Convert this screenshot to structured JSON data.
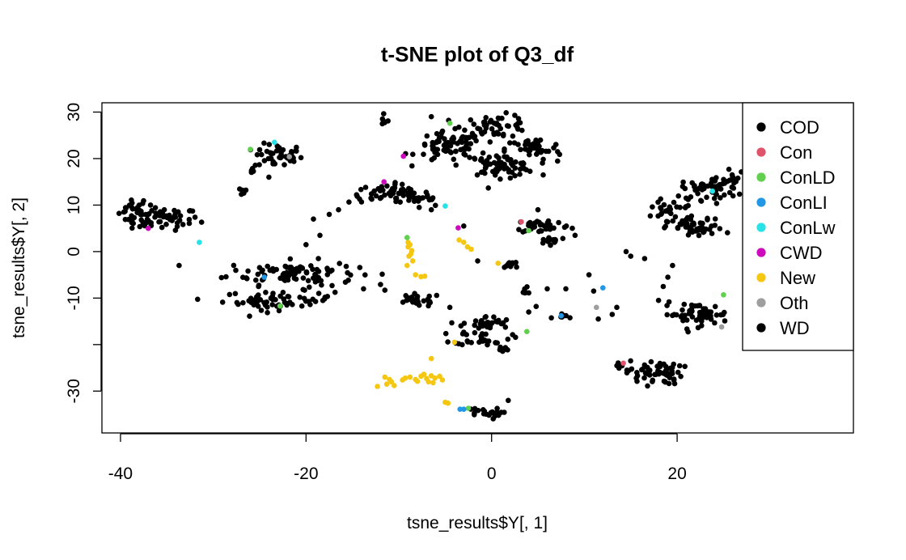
{
  "chart_data": {
    "type": "scatter",
    "title": "t-SNE plot of Q3_df",
    "xlabel": "tsne_results$Y[, 1]",
    "ylabel": "tsne_results$Y[, 2]",
    "xlim": [
      -42,
      39
    ],
    "ylim": [
      -39,
      32
    ],
    "x_ticks": [
      -40,
      -20,
      0,
      20
    ],
    "y_ticks": [
      30,
      20,
      10,
      0,
      -10,
      -30
    ],
    "y_tick_labels": [
      "30",
      "20",
      "10",
      "0",
      "-10",
      "-30"
    ],
    "legend_position": "top-right",
    "legend": [
      {
        "name": "COD",
        "color": "#000000"
      },
      {
        "name": "Con",
        "color": "#DF536B"
      },
      {
        "name": "ConLD",
        "color": "#61D04F"
      },
      {
        "name": "ConLI",
        "color": "#2297E6"
      },
      {
        "name": "ConLw",
        "color": "#28E2E5"
      },
      {
        "name": "CWD",
        "color": "#CD0BBC"
      },
      {
        "name": "New",
        "color": "#F5C710"
      },
      {
        "name": "Oth",
        "color": "#9E9E9E"
      },
      {
        "name": "WD",
        "color": "#000000"
      }
    ],
    "series": [
      {
        "name": "New",
        "color": "#F5C710",
        "points": [
          [
            -9.0,
            1.0
          ],
          [
            -8.6,
            0.2
          ],
          [
            -8.9,
            -1.0
          ],
          [
            -8.5,
            -2.0
          ],
          [
            -9.1,
            -3.0
          ],
          [
            -9.0,
            2.0
          ],
          [
            -8.8,
            1.5
          ],
          [
            -8.7,
            -0.5
          ],
          [
            -8.2,
            -5.0
          ],
          [
            -7.6,
            -5.4
          ],
          [
            -7.2,
            -5.3
          ],
          [
            -3.5,
            2.5
          ],
          [
            -3.0,
            2.0
          ],
          [
            -2.6,
            1.0
          ],
          [
            -2.2,
            0.5
          ],
          [
            0.7,
            -2.5
          ],
          [
            -4.0,
            -19.5
          ],
          [
            -6.5,
            -23.0
          ],
          [
            -11.5,
            -27.0
          ],
          [
            -11.0,
            -27.5
          ],
          [
            -10.8,
            -28.0
          ],
          [
            -11.3,
            -28.5
          ],
          [
            -12.3,
            -29.0
          ],
          [
            -10.5,
            -28.8
          ],
          [
            -8.8,
            -27.0
          ],
          [
            -8.2,
            -27.5
          ],
          [
            -7.6,
            -26.8
          ],
          [
            -7.0,
            -27.3
          ],
          [
            -6.5,
            -26.7
          ],
          [
            -6.1,
            -27.2
          ],
          [
            -5.6,
            -26.8
          ],
          [
            -6.8,
            -28.0
          ],
          [
            -8.0,
            -27.9
          ],
          [
            -9.3,
            -27.2
          ],
          [
            -5.0,
            -32.4
          ],
          [
            -4.7,
            -32.6
          ],
          [
            -7.3,
            -26.4
          ],
          [
            -6.3,
            -28.2
          ],
          [
            -5.3,
            -27.6
          ],
          [
            -9.6,
            -27.6
          ]
        ]
      },
      {
        "name": "ConLD",
        "color": "#61D04F",
        "points": [
          [
            -26.0,
            22.0
          ],
          [
            -22.8,
            -11.7
          ],
          [
            -9.1,
            3.0
          ],
          [
            -4.5,
            27.6
          ],
          [
            4.0,
            4.5
          ],
          [
            3.8,
            -17.2
          ],
          [
            -2.5,
            -33.7
          ],
          [
            25.0,
            -9.3
          ]
        ]
      },
      {
        "name": "ConLI",
        "color": "#2297E6",
        "points": [
          [
            -24.5,
            -5.5
          ],
          [
            -3.4,
            -33.9
          ],
          [
            -3.0,
            -33.9
          ],
          [
            7.5,
            -13.8
          ],
          [
            12.0,
            -7.8
          ]
        ]
      },
      {
        "name": "ConLw",
        "color": "#28E2E5",
        "points": [
          [
            -23.4,
            23.5
          ],
          [
            -31.5,
            2.0
          ],
          [
            -5.0,
            9.8
          ],
          [
            23.8,
            13.0
          ]
        ]
      },
      {
        "name": "CWD",
        "color": "#CD0BBC",
        "points": [
          [
            -37.0,
            5.0
          ],
          [
            -11.6,
            15.0
          ],
          [
            -9.5,
            20.5
          ],
          [
            -3.6,
            5.1
          ]
        ]
      },
      {
        "name": "Con",
        "color": "#DF536B",
        "points": [
          [
            3.2,
            6.4
          ],
          [
            14.2,
            -24.0
          ]
        ]
      },
      {
        "name": "Oth",
        "color": "#9E9E9E",
        "points": [
          [
            -21.8,
            20.4
          ],
          [
            11.3,
            -12.0
          ],
          [
            24.8,
            -16.2
          ]
        ]
      }
    ],
    "black_clusters": [
      {
        "cx": -38.5,
        "cy": 9.0,
        "sx": 0.8,
        "sy": 1.5,
        "n": 22
      },
      {
        "cx": -35.5,
        "cy": 7.0,
        "sx": 2.0,
        "sy": 1.2,
        "n": 60
      },
      {
        "cx": -23.0,
        "cy": 20.5,
        "sx": 1.3,
        "sy": 1.3,
        "n": 45
      },
      {
        "cx": -26.0,
        "cy": 17.5,
        "sx": 0.3,
        "sy": 0.4,
        "n": 5
      },
      {
        "cx": -27.0,
        "cy": 13.0,
        "sx": 0.4,
        "sy": 0.4,
        "n": 6
      },
      {
        "cx": -21.5,
        "cy": -4.5,
        "sx": 3.5,
        "sy": 1.3,
        "n": 90
      },
      {
        "cx": -23.0,
        "cy": -10.5,
        "sx": 3.0,
        "sy": 1.0,
        "n": 60
      },
      {
        "cx": -18.5,
        "cy": -7.5,
        "sx": 0.8,
        "sy": 1.3,
        "n": 10
      },
      {
        "cx": -11.0,
        "cy": 12.5,
        "sx": 2.2,
        "sy": 1.0,
        "n": 50
      },
      {
        "cx": -7.8,
        "cy": 11.5,
        "sx": 1.2,
        "sy": 0.6,
        "n": 14
      },
      {
        "cx": -11.5,
        "cy": 28.0,
        "sx": 0.3,
        "sy": 0.5,
        "n": 6
      },
      {
        "cx": -8.0,
        "cy": -10.5,
        "sx": 1.3,
        "sy": 0.7,
        "n": 25
      },
      {
        "cx": -4.5,
        "cy": 22.5,
        "sx": 1.8,
        "sy": 1.6,
        "n": 70
      },
      {
        "cx": 0.5,
        "cy": 27.0,
        "sx": 1.8,
        "sy": 1.2,
        "n": 50
      },
      {
        "cx": 0.8,
        "cy": 18.5,
        "sx": 2.0,
        "sy": 1.2,
        "n": 70
      },
      {
        "cx": 4.5,
        "cy": 22.0,
        "sx": 1.5,
        "sy": 1.2,
        "n": 40
      },
      {
        "cx": 5.5,
        "cy": 5.5,
        "sx": 1.5,
        "sy": 0.8,
        "n": 35
      },
      {
        "cx": 6.5,
        "cy": 2.5,
        "sx": 0.8,
        "sy": 0.4,
        "n": 14
      },
      {
        "cx": -0.5,
        "cy": -15.5,
        "sx": 1.3,
        "sy": 0.8,
        "n": 30
      },
      {
        "cx": -1.0,
        "cy": -18.5,
        "sx": 1.5,
        "sy": 0.8,
        "n": 30
      },
      {
        "cx": 1.0,
        "cy": -21.0,
        "sx": 0.5,
        "sy": 0.4,
        "n": 8
      },
      {
        "cx": 2.0,
        "cy": -3.0,
        "sx": 0.6,
        "sy": 0.6,
        "n": 10
      },
      {
        "cx": 3.5,
        "cy": -8.5,
        "sx": 0.5,
        "sy": 0.4,
        "n": 8
      },
      {
        "cx": -1.0,
        "cy": -34.8,
        "sx": 1.0,
        "sy": 0.6,
        "n": 20
      },
      {
        "cx": 17.5,
        "cy": -26.0,
        "sx": 1.5,
        "sy": 1.3,
        "n": 60
      },
      {
        "cx": 22.0,
        "cy": 5.0,
        "sx": 1.5,
        "sy": 1.0,
        "n": 50
      },
      {
        "cx": 19.5,
        "cy": 9.0,
        "sx": 1.5,
        "sy": 1.5,
        "n": 30
      },
      {
        "cx": 23.5,
        "cy": 13.5,
        "sx": 1.5,
        "sy": 1.2,
        "n": 50
      },
      {
        "cx": 26.0,
        "cy": 15.5,
        "sx": 0.6,
        "sy": 1.0,
        "n": 14
      },
      {
        "cx": 22.0,
        "cy": -13.5,
        "sx": 1.8,
        "sy": 1.2,
        "n": 55
      },
      {
        "cx": 8.0,
        "cy": -14.0,
        "sx": 0.7,
        "sy": 0.5,
        "n": 8
      },
      {
        "cx": 14.0,
        "cy": -24.5,
        "sx": 0.3,
        "sy": 0.4,
        "n": 4
      }
    ],
    "black_points": [
      [
        -20.0,
        1.5
      ],
      [
        -19.2,
        7.0
      ],
      [
        -17.5,
        8.0
      ],
      [
        -16.5,
        9.0
      ],
      [
        -18.5,
        3.5
      ],
      [
        -13.8,
        -8.0
      ],
      [
        -11.5,
        -8.3
      ],
      [
        -6.5,
        29.0
      ],
      [
        -3.0,
        5.5
      ],
      [
        -1.5,
        -2.0
      ],
      [
        -4.5,
        -12.0
      ],
      [
        5.0,
        9.0
      ],
      [
        4.0,
        -13.0
      ],
      [
        4.8,
        -11.8
      ],
      [
        6.0,
        -8.0
      ],
      [
        8.0,
        -8.0
      ],
      [
        9.0,
        3.5
      ],
      [
        11.0,
        -8.5
      ],
      [
        11.5,
        -14.5
      ],
      [
        13.5,
        -12.0
      ],
      [
        14.5,
        0.0
      ],
      [
        15.0,
        -1.0
      ],
      [
        16.5,
        -1.5
      ],
      [
        18.0,
        -10.5
      ],
      [
        19.0,
        -5.5
      ],
      [
        19.5,
        -3.0
      ],
      [
        18.5,
        -7.5
      ],
      [
        -7.8,
        9.5
      ],
      [
        -6.5,
        9.0
      ],
      [
        1.8,
        -32.0
      ],
      [
        -24.0,
        16.0
      ],
      [
        10.5,
        -5.0
      ],
      [
        13.0,
        -13.5
      ],
      [
        -13.0,
        11.5
      ]
    ]
  }
}
